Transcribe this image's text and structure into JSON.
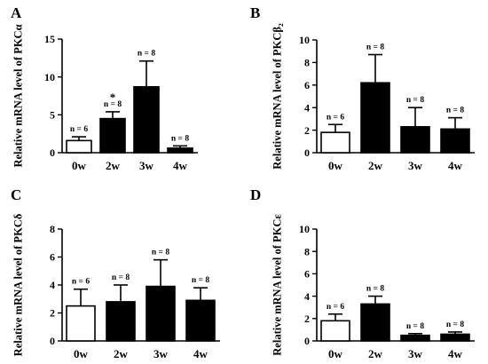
{
  "chart_data": [
    {
      "type": "bar",
      "panel_label": "A",
      "ylabel": "Relative mRNA level of PKCα",
      "categories": [
        "0w",
        "2w",
        "3w",
        "4w"
      ],
      "ylim": [
        0,
        15
      ],
      "yticks": [
        0,
        5,
        10,
        15
      ],
      "values": [
        1.6,
        4.5,
        8.7,
        0.6
      ],
      "errors": [
        0.5,
        0.9,
        3.4,
        0.3
      ],
      "fills": [
        "#ffffff",
        "#000000",
        "#000000",
        "#000000"
      ],
      "annotations": [
        "n = 6",
        "n = 8",
        "n = 8",
        "n = 8"
      ],
      "significance": [
        "",
        "*",
        "",
        ""
      ]
    },
    {
      "type": "bar",
      "panel_label": "B",
      "ylabel": "Relative mRNA level of PKCβ₂",
      "categories": [
        "0w",
        "2w",
        "3w",
        "4w"
      ],
      "ylim": [
        0,
        10
      ],
      "yticks": [
        0,
        2,
        4,
        6,
        8,
        10
      ],
      "values": [
        1.8,
        6.2,
        2.3,
        2.1
      ],
      "errors": [
        0.7,
        2.5,
        1.7,
        1.0
      ],
      "fills": [
        "#ffffff",
        "#000000",
        "#000000",
        "#000000"
      ],
      "annotations": [
        "n = 6",
        "n = 8",
        "n = 8",
        "n = 8"
      ],
      "significance": [
        "",
        "",
        "",
        ""
      ]
    },
    {
      "type": "bar",
      "panel_label": "C",
      "ylabel": "Relative mRNA level of PKCδ",
      "categories": [
        "0w",
        "2w",
        "3w",
        "4w"
      ],
      "ylim": [
        0,
        8
      ],
      "yticks": [
        0,
        2,
        4,
        6,
        8
      ],
      "values": [
        2.5,
        2.8,
        3.9,
        2.9
      ],
      "errors": [
        1.2,
        1.2,
        1.9,
        0.9
      ],
      "fills": [
        "#ffffff",
        "#000000",
        "#000000",
        "#000000"
      ],
      "annotations": [
        "n = 6",
        "n = 8",
        "n = 8",
        "n = 8"
      ],
      "significance": [
        "",
        "",
        "",
        ""
      ]
    },
    {
      "type": "bar",
      "panel_label": "D",
      "ylabel": "Relative mRNA level of PKCε",
      "categories": [
        "0w",
        "2w",
        "3w",
        "4w"
      ],
      "ylim": [
        0,
        10
      ],
      "yticks": [
        0,
        2,
        4,
        6,
        8,
        10
      ],
      "values": [
        1.8,
        3.3,
        0.5,
        0.6
      ],
      "errors": [
        0.6,
        0.7,
        0.15,
        0.2
      ],
      "fills": [
        "#ffffff",
        "#000000",
        "#000000",
        "#000000"
      ],
      "annotations": [
        "n = 6",
        "n = 8",
        "n = 8",
        "n = 8"
      ],
      "significance": [
        "",
        "",
        "",
        ""
      ]
    }
  ]
}
